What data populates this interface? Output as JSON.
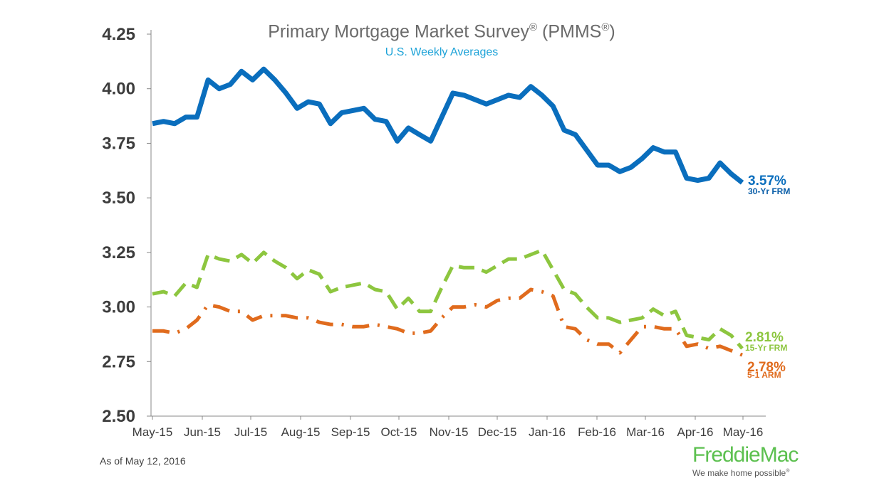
{
  "chart_data": {
    "type": "line",
    "title": "Primary Mortgage Market Survey",
    "title_reg_1": "®",
    "title_suffix": " (PMMS",
    "title_reg_2": "®",
    "title_close": ")",
    "subtitle": "U.S. Weekly Averages",
    "ylim": [
      2.5,
      4.25
    ],
    "yticks": [
      "2.50",
      "2.75",
      "3.00",
      "3.25",
      "3.50",
      "3.75",
      "4.00",
      "4.25"
    ],
    "x_labels": [
      "May-15",
      "Jun-15",
      "Jul-15",
      "Aug-15",
      "Sep-15",
      "Oct-15",
      "Nov-15",
      "Dec-15",
      "Jan-16",
      "Feb-16",
      "Mar-16",
      "Apr-16",
      "May-16"
    ],
    "series": [
      {
        "name": "30-Yr FRM",
        "color": "#0a6ebd",
        "style": "solid",
        "end_value": "3.57%",
        "end_label": "30-Yr FRM",
        "values": [
          3.84,
          3.85,
          3.84,
          3.87,
          3.87,
          4.04,
          4.0,
          4.02,
          4.08,
          4.04,
          4.09,
          4.04,
          3.98,
          3.91,
          3.94,
          3.93,
          3.84,
          3.89,
          3.9,
          3.91,
          3.86,
          3.85,
          3.76,
          3.82,
          3.79,
          3.76,
          3.87,
          3.98,
          3.97,
          3.95,
          3.93,
          3.95,
          3.97,
          3.96,
          4.01,
          3.97,
          3.92,
          3.81,
          3.79,
          3.72,
          3.65,
          3.65,
          3.62,
          3.64,
          3.68,
          3.73,
          3.71,
          3.71,
          3.59,
          3.58,
          3.59,
          3.66,
          3.61,
          3.57
        ]
      },
      {
        "name": "15-Yr FRM",
        "color": "#8dc63f",
        "style": "dashed",
        "end_value": "2.81%",
        "end_label": "15-Yr FRM",
        "values": [
          3.06,
          3.07,
          3.05,
          3.11,
          3.09,
          3.24,
          3.22,
          3.21,
          3.24,
          3.2,
          3.25,
          3.21,
          3.18,
          3.13,
          3.17,
          3.15,
          3.07,
          3.09,
          3.1,
          3.11,
          3.08,
          3.07,
          2.99,
          3.04,
          2.98,
          2.98,
          3.09,
          3.19,
          3.18,
          3.18,
          3.16,
          3.19,
          3.22,
          3.22,
          3.24,
          3.26,
          3.17,
          3.08,
          3.06,
          3.0,
          2.95,
          2.95,
          2.93,
          2.94,
          2.95,
          2.99,
          2.96,
          2.98,
          2.87,
          2.86,
          2.85,
          2.9,
          2.87,
          2.81
        ]
      },
      {
        "name": "5-1 ARM",
        "color": "#e06b1d",
        "style": "dashdot",
        "end_value": "2.78%",
        "end_label": "5-1 ARM",
        "values": [
          2.89,
          2.89,
          2.88,
          2.9,
          2.94,
          3.01,
          3.0,
          2.98,
          2.98,
          2.94,
          2.96,
          2.96,
          2.96,
          2.95,
          2.95,
          2.93,
          2.92,
          2.92,
          2.91,
          2.91,
          2.92,
          2.91,
          2.9,
          2.88,
          2.88,
          2.89,
          2.95,
          3.0,
          3.0,
          3.01,
          3.0,
          3.03,
          3.04,
          3.04,
          3.08,
          3.07,
          3.05,
          2.91,
          2.9,
          2.85,
          2.83,
          2.83,
          2.79,
          2.85,
          2.91,
          2.91,
          2.9,
          2.9,
          2.82,
          2.83,
          2.81,
          2.82,
          2.8,
          2.78
        ]
      }
    ]
  },
  "footer": {
    "as_of": "As of May 12, 2016",
    "logo_name": "FreddieMac",
    "logo_tagline": "We make home possible",
    "logo_tag_reg": "®"
  },
  "colors": {
    "title": "#6b6b6b",
    "subtitle": "#1ea3d8",
    "axis": "#888888",
    "text": "#3d3d3d"
  }
}
